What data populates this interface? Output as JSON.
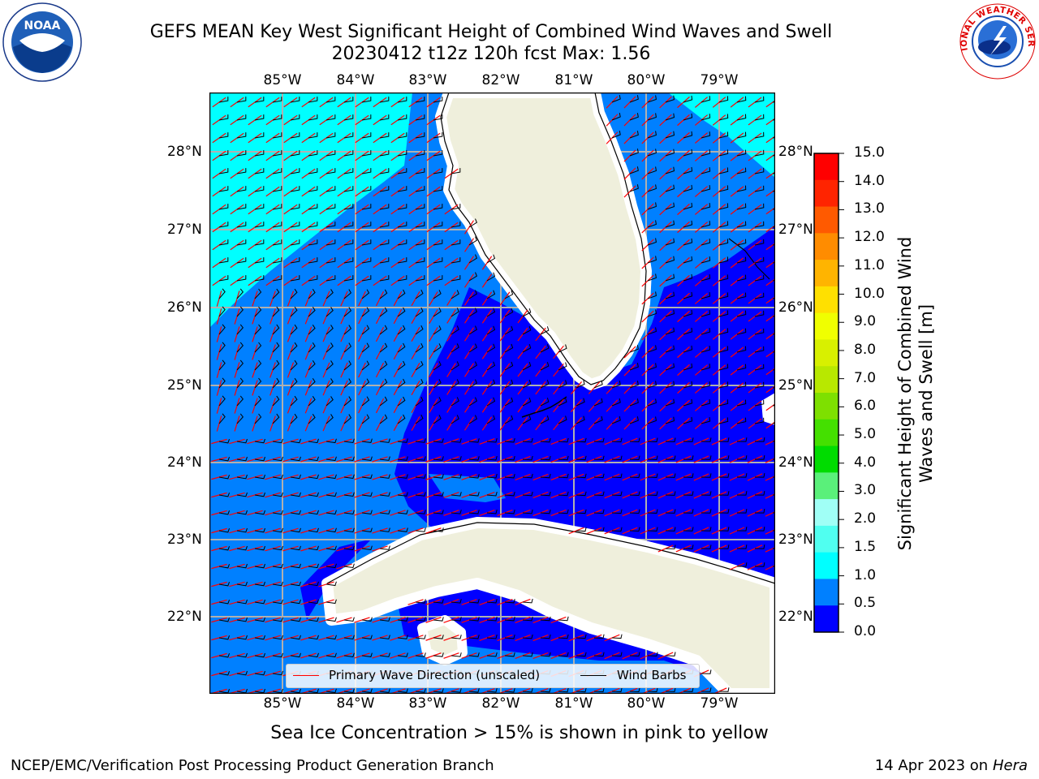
{
  "header": {
    "title_line1": "GEFS MEAN Key West Significant Height of Combined Wind Waves and Swell",
    "title_line2": "20230412 t12z 120h fcst   Max: 1.56"
  },
  "logos": {
    "left": {
      "name": "noaa-logo",
      "text": "NOAA"
    },
    "right": {
      "name": "nws-logo",
      "text": "NATIONAL WEATHER SERVICE"
    }
  },
  "map": {
    "lon_labels": [
      "85°W",
      "84°W",
      "83°W",
      "82°W",
      "81°W",
      "80°W",
      "79°W"
    ],
    "lat_labels": [
      "28°N",
      "27°N",
      "26°N",
      "25°N",
      "24°N",
      "23°N",
      "22°N"
    ],
    "land_color": "#efefdc",
    "grid_color": "#b0b0b0"
  },
  "legend": {
    "wave_direction": "Primary Wave Direction (unscaled)",
    "wind_barbs": "Wind Barbs",
    "wave_color": "#ff0000",
    "barb_color": "#000000"
  },
  "colorbar": {
    "label": "Significant Height of Combined Wind Waves and Swell [m]",
    "ticks": [
      "15.0",
      "14.0",
      "13.0",
      "12.0",
      "11.0",
      "10.0",
      "9.0",
      "8.0",
      "7.0",
      "6.0",
      "5.0",
      "4.0",
      "3.0",
      "2.0",
      "1.5",
      "1.0",
      "0.5",
      "0.0"
    ],
    "colors": [
      "#ff0000",
      "#ff2400",
      "#ff5a00",
      "#ff8c00",
      "#ffb400",
      "#ffe000",
      "#f0ff00",
      "#d8f000",
      "#b8e800",
      "#7ee000",
      "#44e000",
      "#00dc00",
      "#5af07a",
      "#a0fff6",
      "#50fff0",
      "#00ffff",
      "#0080ff",
      "#0000ff"
    ]
  },
  "footer": {
    "sea_ice_note": "Sea Ice Concentration > 15% is shown in pink to yellow",
    "credit_left": "NCEP/EMC/Verification Post Processing Product Generation Branch",
    "credit_date": "14 Apr 2023 on ",
    "credit_host": "Hera"
  }
}
